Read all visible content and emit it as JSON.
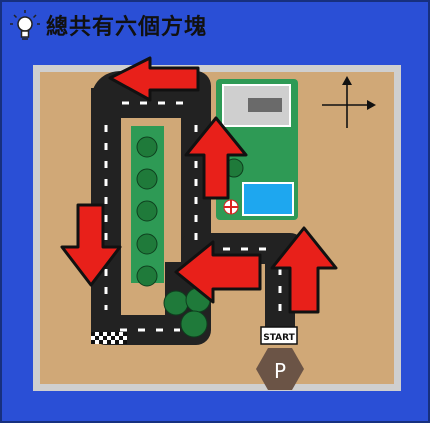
{
  "title": "總共有六個方塊",
  "icons": {
    "title_icon": "lightbulb-icon",
    "compass": "compass-arrows-icon",
    "parking": "parking-hexagon-icon",
    "finish": "checkered-flag-icon"
  },
  "labels": {
    "start": "START",
    "parking": "P"
  },
  "colors": {
    "border": "#2a4fd6",
    "ground": "#d0a877",
    "road": "#222222",
    "park": "#2e9a55",
    "arrow": "#e8201a",
    "pool": "#1ea7ef",
    "parking_hex": "#6b5446"
  }
}
